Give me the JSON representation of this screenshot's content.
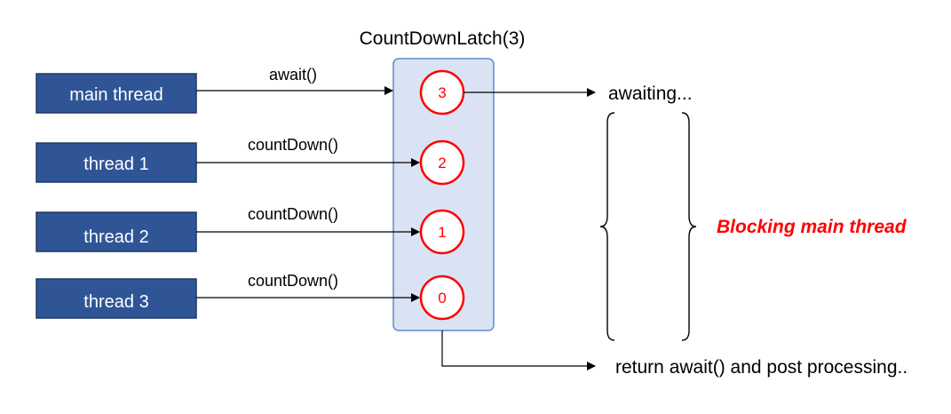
{
  "latch": {
    "title": "CountDownLatch(3)",
    "counts": [
      "3",
      "2",
      "1",
      "0"
    ]
  },
  "threads": [
    {
      "label": "main thread",
      "call": "await()"
    },
    {
      "label": "thread 1",
      "call": "countDown()"
    },
    {
      "label": "thread 2",
      "call": "countDown()"
    },
    {
      "label": "thread 3",
      "call": "countDown()"
    }
  ],
  "outputs": {
    "awaiting": "awaiting...",
    "return": "return await() and post processing..",
    "blocking": "Blocking main thread"
  },
  "colors": {
    "thread_box": "#2f5597",
    "latch_fill": "#dae3f3",
    "latch_border": "#5b8bd0",
    "counter_red": "#ff0000"
  }
}
